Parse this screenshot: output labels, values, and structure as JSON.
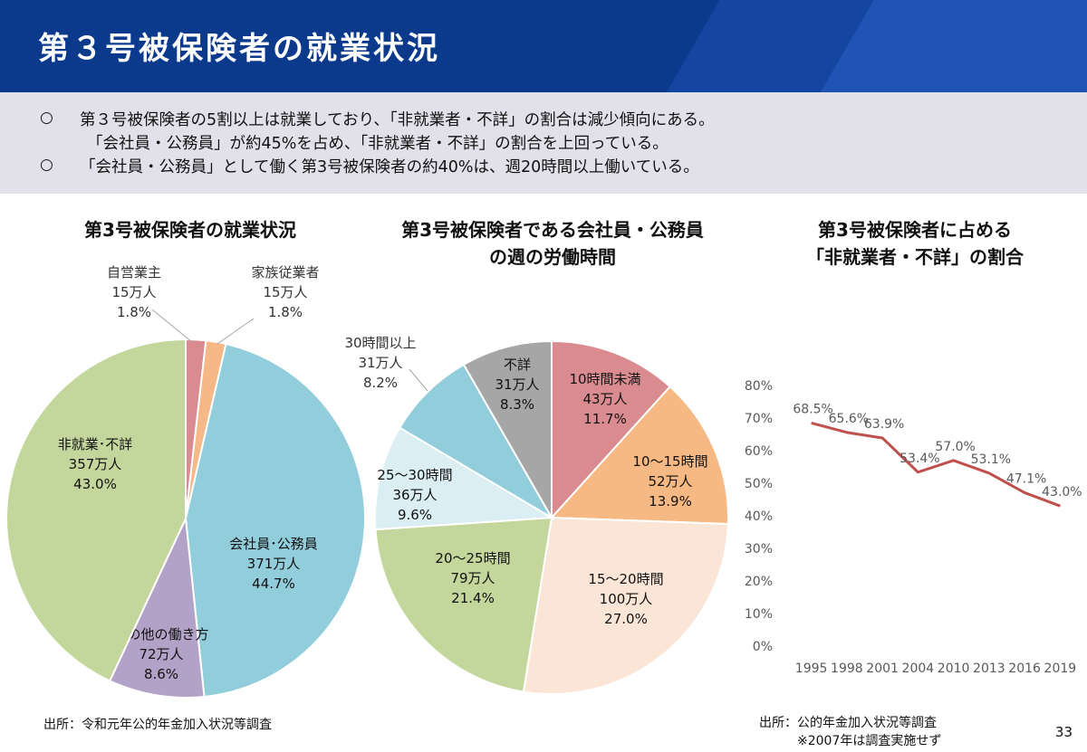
{
  "header": {
    "title": "第３号被保険者の就業状況"
  },
  "summary": {
    "bullet": "○",
    "line1": "第３号被保険者の5割以上は就業しており、「非就業者・不詳」の割合は減少傾向にある。",
    "line2": "「会社員・公務員」が約45%を占め、「非就業者・不詳」の割合を上回っている。",
    "line3": "「会社員・公務員」として働く第3号被保険者の約40%は、週20時間以上働いている。"
  },
  "chart_data": [
    {
      "type": "pie",
      "title": "第3号被保険者の就業状況",
      "slices": [
        {
          "label": "自営業主",
          "count": "15万人",
          "pct": "1.8%",
          "value": 1.8,
          "color": "#d98b8f"
        },
        {
          "label": "家族従業者",
          "count": "15万人",
          "pct": "1.8%",
          "value": 1.8,
          "color": "#f5b886"
        },
        {
          "label": "会社員･公務員",
          "count": "371万人",
          "pct": "44.7%",
          "value": 44.7,
          "color": "#92cddc"
        },
        {
          "label": "その他の働き方",
          "count": "72万人",
          "pct": "8.6%",
          "value": 8.6,
          "color": "#b3a2c7"
        },
        {
          "label": "非就業･不詳",
          "count": "357万人",
          "pct": "43.0%",
          "value": 43.0,
          "color": "#c3d69b"
        }
      ],
      "source": "出所：令和元年公的年金加入状況等調査"
    },
    {
      "type": "pie",
      "title": [
        "第3号被保険者である会社員・公務員",
        "の週の労働時間"
      ],
      "slices": [
        {
          "label": "10時間未満",
          "count": "43万人",
          "pct": "11.7%",
          "value": 11.7,
          "color": "#d98b8f"
        },
        {
          "label": "10～15時間",
          "count": "52万人",
          "pct": "13.9%",
          "value": 13.9,
          "color": "#f7b983"
        },
        {
          "label": "15～20時間",
          "count": "100万人",
          "pct": "27.0%",
          "value": 27.0,
          "color": "#fbe5d6"
        },
        {
          "label": "20～25時間",
          "count": "79万人",
          "pct": "21.4%",
          "value": 21.4,
          "color": "#c3d69b"
        },
        {
          "label": "25～30時間",
          "count": "36万人",
          "pct": "9.6%",
          "value": 9.6,
          "color": "#dbeef4"
        },
        {
          "label": "30時間以上",
          "count": "31万人",
          "pct": "8.2%",
          "value": 8.2,
          "color": "#92cddc"
        },
        {
          "label": "不詳",
          "count": "31万人",
          "pct": "8.3%",
          "value": 8.3,
          "color": "#a6a6a6"
        }
      ]
    },
    {
      "type": "line",
      "title": [
        "第3号被保険者に占める",
        "「非就業者・不詳」の割合"
      ],
      "x": [
        "1995",
        "1998",
        "2001",
        "2004",
        "2010",
        "2013",
        "2016",
        "2019"
      ],
      "series": [
        {
          "values": [
            68.5,
            65.6,
            63.9,
            53.4,
            57.0,
            53.1,
            47.1,
            43.0
          ],
          "labels": [
            "68.5%",
            "65.6%",
            "63.9%",
            "53.4%",
            "57.0%",
            "53.1%",
            "47.1%",
            "43.0%"
          ],
          "color": "#c0504d"
        }
      ],
      "ylim": [
        0,
        80
      ],
      "yticks": [
        "0%",
        "10%",
        "20%",
        "30%",
        "40%",
        "50%",
        "60%",
        "70%",
        "80%"
      ],
      "grid": false,
      "source": [
        "出所：公的年金加入状況等調査",
        "※2007年は調査実施せず"
      ]
    }
  ],
  "page_number": "33"
}
